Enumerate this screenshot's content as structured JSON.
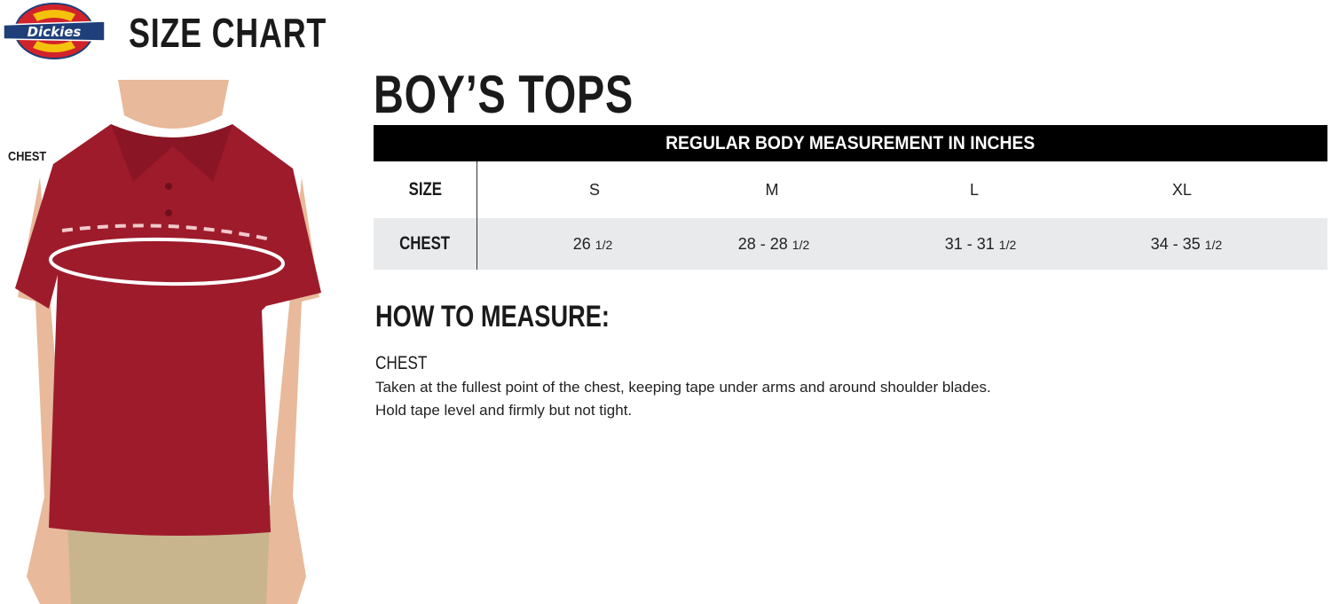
{
  "brand": {
    "logo_text": "Dickies",
    "colors": {
      "red": "#d2232a",
      "yellow": "#f4c20d",
      "navy": "#1f3f7a"
    }
  },
  "header": {
    "title": "SIZE CHART"
  },
  "figure": {
    "chest_label": "CHEST",
    "shirt_color": "#9e1b2c",
    "pants_color": "#c8b58e"
  },
  "section": {
    "title": "BOY’S TOPS"
  },
  "table": {
    "header": "REGULAR BODY MEASUREMENT IN INCHES",
    "size_label": "SIZE",
    "chest_label": "CHEST",
    "sizes": [
      "S",
      "M",
      "L",
      "XL"
    ],
    "chest": [
      {
        "main": "26",
        "frac": "1/2"
      },
      {
        "main": "28 - 28",
        "frac": "1/2"
      },
      {
        "main": "31 - 31",
        "frac": "1/2"
      },
      {
        "main": "34 - 35",
        "frac": "1/2"
      }
    ]
  },
  "how_to_measure": {
    "title": "HOW TO MEASURE:",
    "chest_title": "CHEST",
    "lines": [
      "Taken at the fullest point of the chest, keeping tape under arms and around shoulder blades.",
      "Hold tape level and firmly but not tight."
    ]
  }
}
